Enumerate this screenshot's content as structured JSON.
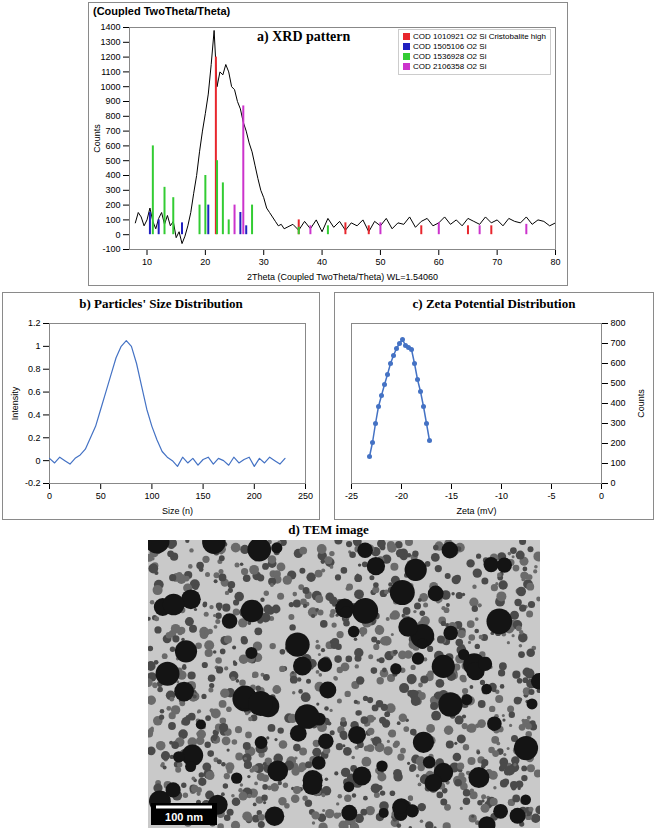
{
  "chart_data": [
    {
      "type": "line",
      "title": "a) XRD pattern",
      "subtitle": "(Coupled TwoTheta/Theta)",
      "x_label": "2Theta (Coupled TwoTheta/Theta) WL=1.54060",
      "y_label": "Counts",
      "xlim": [
        7,
        80
      ],
      "xticks": [
        10,
        20,
        30,
        40,
        50,
        60,
        70,
        80
      ],
      "ylim": [
        -100,
        1400
      ],
      "yticks": [
        -100,
        0,
        100,
        200,
        300,
        400,
        500,
        600,
        700,
        800,
        900,
        1000,
        1100,
        1200,
        1300,
        1400
      ],
      "legend": "top-right",
      "series": [
        {
          "type": "line",
          "color": "#000000",
          "x": [
            8,
            8.5,
            9,
            9.5,
            10,
            10.5,
            11,
            11.5,
            12,
            12.5,
            13,
            13.5,
            14,
            14.5,
            15,
            15.5,
            16,
            16.5,
            17,
            17.5,
            18,
            18.5,
            19,
            19.5,
            20,
            20.5,
            21,
            21.5,
            22,
            22.5,
            23,
            23.5,
            24,
            24.5,
            25,
            25.5,
            26,
            26.5,
            27,
            27.5,
            28,
            28.5,
            29,
            29.5,
            30,
            30.5,
            31,
            31.5,
            32,
            32.5,
            33,
            33.5,
            34,
            35,
            36,
            37,
            38,
            39,
            40,
            41,
            42,
            43,
            44,
            45,
            46,
            47,
            48,
            49,
            50,
            51,
            52,
            53,
            54,
            55,
            56,
            57,
            58,
            59,
            60,
            61,
            62,
            63,
            64,
            65,
            66,
            67,
            68,
            69,
            70,
            71,
            72,
            73,
            74,
            75,
            76,
            77,
            78,
            79,
            80
          ],
          "values": [
            80,
            150,
            120,
            60,
            100,
            180,
            90,
            40,
            110,
            150,
            70,
            130,
            60,
            90,
            -20,
            20,
            -60,
            -10,
            60,
            150,
            280,
            400,
            560,
            700,
            820,
            950,
            1150,
            1380,
            1000,
            1100,
            1080,
            1150,
            1100,
            1000,
            980,
            900,
            850,
            760,
            700,
            620,
            560,
            470,
            380,
            300,
            250,
            180,
            150,
            120,
            90,
            60,
            70,
            40,
            50,
            70,
            30,
            90,
            40,
            100,
            20,
            110,
            50,
            90,
            30,
            80,
            60,
            100,
            20,
            90,
            60,
            110,
            40,
            80,
            70,
            120,
            50,
            90,
            110,
            60,
            80,
            120,
            70,
            100,
            60,
            110,
            90,
            70,
            120,
            80,
            100,
            60,
            110,
            90,
            80,
            120,
            70,
            100,
            90,
            60,
            80
          ]
        },
        {
          "name": "COD 1010921 O2 Si Cristobalite high",
          "type": "stick",
          "color": "#e8262d",
          "x": [
            21.8,
            36,
            44,
            48,
            57,
            65,
            69
          ],
          "values": [
            1200,
            100,
            80,
            60,
            60,
            60,
            60
          ]
        },
        {
          "name": "COD 1505106 O2 Si",
          "type": "stick",
          "color": "#2020c0",
          "x": [
            10.5,
            12,
            16,
            20.5,
            26,
            27
          ],
          "values": [
            150,
            100,
            80,
            200,
            150,
            60
          ]
        },
        {
          "name": "COD 1536928 O2 Si",
          "type": "stick",
          "color": "#33cc33",
          "x": [
            11,
            13,
            14.5,
            19,
            20,
            22,
            23,
            24,
            28,
            36,
            41
          ],
          "values": [
            600,
            320,
            250,
            200,
            400,
            500,
            350,
            100,
            200,
            50,
            60
          ]
        },
        {
          "name": "COD 2106358 O2 Si",
          "type": "stick",
          "color": "#cc33cc",
          "x": [
            25,
            26.5,
            38,
            50,
            60,
            67,
            75
          ],
          "values": [
            200,
            870,
            60,
            80,
            80,
            60,
            70
          ]
        }
      ]
    },
    {
      "type": "line",
      "title": "b) Particles' Size Distribution",
      "x_label": "Size (n)",
      "y_label": "Intensity",
      "color": "#4472c4",
      "xlim": [
        0,
        250
      ],
      "xticks": [
        0,
        50,
        100,
        150,
        200,
        250
      ],
      "ylim": [
        -0.2,
        1.2
      ],
      "yticks": [
        -0.2,
        0,
        0.2,
        0.4,
        0.6,
        0.8,
        1,
        1.2
      ],
      "x": [
        0,
        5,
        10,
        15,
        20,
        25,
        30,
        35,
        40,
        45,
        50,
        55,
        60,
        65,
        70,
        75,
        80,
        85,
        90,
        95,
        100,
        105,
        110,
        115,
        120,
        125,
        130,
        135,
        140,
        145,
        150,
        155,
        160,
        165,
        170,
        175,
        180,
        185,
        190,
        195,
        200,
        205,
        210,
        215,
        220,
        225,
        230
      ],
      "values": [
        0.02,
        -0.02,
        0.03,
        0,
        -0.03,
        0.02,
        0.05,
        0.1,
        0.2,
        0.3,
        0.45,
        0.6,
        0.75,
        0.9,
        1.0,
        1.05,
        1.0,
        0.85,
        0.65,
        0.45,
        0.3,
        0.18,
        0.08,
        0.03,
        0,
        -0.05,
        0.03,
        -0.02,
        0.02,
        -0.04,
        0.01,
        0.03,
        -0.03,
        0.02,
        0,
        -0.04,
        0.03,
        -0.02,
        0.01,
        0.03,
        -0.05,
        0.02,
        -0.02,
        0.03,
        0,
        -0.03,
        0.02
      ]
    },
    {
      "type": "line",
      "title": "c) Zeta Potential Distribution",
      "x_label": "Zeta (mV)",
      "y_label": "Counts",
      "xlim": [
        -25,
        0
      ],
      "xticks": [
        -25,
        -20,
        -15,
        -10,
        -5,
        0
      ],
      "y2lim": [
        0,
        800
      ],
      "y2ticks": [
        0,
        100,
        200,
        300,
        400,
        500,
        600,
        700,
        800
      ],
      "series": [
        {
          "axis": "y2",
          "color": "#4472c4",
          "marker": "circle",
          "x": [
            -23.2,
            -22.9,
            -22.6,
            -22.3,
            -22.0,
            -21.7,
            -21.4,
            -21.1,
            -20.8,
            -20.5,
            -20.2,
            -19.9,
            -19.6,
            -19.3,
            -19.0,
            -18.7,
            -18.4,
            -18.1,
            -17.8,
            -17.5,
            -17.2
          ],
          "values": [
            135,
            205,
            300,
            385,
            440,
            495,
            545,
            600,
            640,
            675,
            700,
            720,
            690,
            680,
            670,
            600,
            520,
            460,
            385,
            300,
            215
          ]
        }
      ]
    }
  ],
  "image": {
    "title": "d) TEM image",
    "scale_bar": "100 nm"
  }
}
